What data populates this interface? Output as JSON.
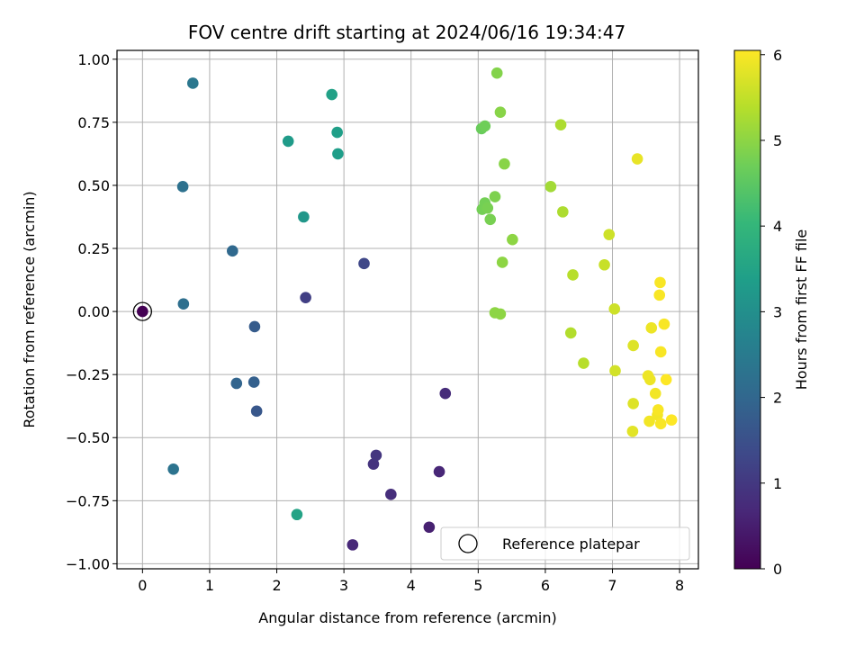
{
  "chart_data": {
    "type": "scatter",
    "title": "FOV centre drift starting at 2024/06/16 19:34:47",
    "xlabel": "Angular distance from reference (arcmin)",
    "ylabel": "Rotation from reference (arcmin)",
    "xlim": [
      -0.38,
      8.28
    ],
    "ylim": [
      -1.02,
      1.035
    ],
    "xticks": [
      0,
      1,
      2,
      3,
      4,
      5,
      6,
      7,
      8
    ],
    "yticks": [
      -1.0,
      -0.75,
      -0.5,
      -0.25,
      0.0,
      0.25,
      0.5,
      0.75,
      1.0
    ],
    "xtick_labels": [
      "0",
      "1",
      "2",
      "3",
      "4",
      "5",
      "6",
      "7",
      "8"
    ],
    "ytick_labels": [
      "−1.00",
      "−0.75",
      "−0.50",
      "−0.25",
      "0.00",
      "0.25",
      "0.50",
      "0.75",
      "1.00"
    ],
    "grid": true,
    "colormap": "viridis",
    "colorbar": {
      "label": "Hours from first FF file",
      "range": [
        0,
        6.05
      ],
      "ticks": [
        0,
        1,
        2,
        3,
        4,
        5,
        6
      ],
      "tick_labels": [
        "0",
        "1",
        "2",
        "3",
        "4",
        "5",
        "6"
      ]
    },
    "legend": {
      "label": "Reference platepar",
      "placement": "lower right"
    },
    "reference_point": {
      "x": 0.0,
      "y": 0.0
    },
    "series": [
      {
        "points": [
          {
            "x": 0.0,
            "y": 0.0,
            "c": 0.0
          },
          {
            "x": 4.27,
            "y": -0.855,
            "c": 0.55
          },
          {
            "x": 3.13,
            "y": -0.925,
            "c": 0.7
          },
          {
            "x": 4.42,
            "y": -0.635,
            "c": 0.65
          },
          {
            "x": 3.7,
            "y": -0.725,
            "c": 0.8
          },
          {
            "x": 4.51,
            "y": -0.325,
            "c": 0.75
          },
          {
            "x": 3.44,
            "y": -0.605,
            "c": 0.9
          },
          {
            "x": 3.48,
            "y": -0.57,
            "c": 0.95
          },
          {
            "x": 2.43,
            "y": 0.055,
            "c": 1.15
          },
          {
            "x": 3.3,
            "y": 0.19,
            "c": 1.3
          },
          {
            "x": 1.7,
            "y": -0.395,
            "c": 1.65
          },
          {
            "x": 1.67,
            "y": -0.06,
            "c": 1.75
          },
          {
            "x": 1.66,
            "y": -0.28,
            "c": 1.85
          },
          {
            "x": 1.4,
            "y": -0.285,
            "c": 1.95
          },
          {
            "x": 1.34,
            "y": 0.24,
            "c": 2.05
          },
          {
            "x": 0.61,
            "y": 0.03,
            "c": 2.2
          },
          {
            "x": 0.6,
            "y": 0.495,
            "c": 2.25
          },
          {
            "x": 0.46,
            "y": -0.625,
            "c": 2.3
          },
          {
            "x": 0.75,
            "y": 0.905,
            "c": 2.4
          },
          {
            "x": 2.4,
            "y": 0.375,
            "c": 3.2
          },
          {
            "x": 2.17,
            "y": 0.675,
            "c": 3.3
          },
          {
            "x": 2.91,
            "y": 0.625,
            "c": 3.35
          },
          {
            "x": 2.9,
            "y": 0.71,
            "c": 3.4
          },
          {
            "x": 2.82,
            "y": 0.86,
            "c": 3.45
          },
          {
            "x": 2.3,
            "y": -0.805,
            "c": 3.5
          },
          {
            "x": 5.05,
            "y": 0.725,
            "c": 4.65
          },
          {
            "x": 5.1,
            "y": 0.735,
            "c": 4.7
          },
          {
            "x": 5.06,
            "y": 0.405,
            "c": 4.75
          },
          {
            "x": 5.1,
            "y": 0.43,
            "c": 4.75
          },
          {
            "x": 5.14,
            "y": 0.41,
            "c": 4.8
          },
          {
            "x": 5.18,
            "y": 0.365,
            "c": 4.8
          },
          {
            "x": 5.25,
            "y": 0.455,
            "c": 4.85
          },
          {
            "x": 5.28,
            "y": 0.945,
            "c": 4.9
          },
          {
            "x": 5.33,
            "y": 0.79,
            "c": 4.95
          },
          {
            "x": 5.39,
            "y": 0.585,
            "c": 4.95
          },
          {
            "x": 5.51,
            "y": 0.285,
            "c": 5.0
          },
          {
            "x": 5.36,
            "y": 0.195,
            "c": 5.0
          },
          {
            "x": 5.25,
            "y": -0.005,
            "c": 5.0
          },
          {
            "x": 5.33,
            "y": -0.01,
            "c": 5.0
          },
          {
            "x": 6.08,
            "y": 0.495,
            "c": 5.2
          },
          {
            "x": 6.23,
            "y": 0.74,
            "c": 5.3
          },
          {
            "x": 6.26,
            "y": 0.395,
            "c": 5.3
          },
          {
            "x": 6.38,
            "y": -0.085,
            "c": 5.35
          },
          {
            "x": 6.41,
            "y": 0.145,
            "c": 5.4
          },
          {
            "x": 6.57,
            "y": -0.205,
            "c": 5.4
          },
          {
            "x": 6.88,
            "y": 0.185,
            "c": 5.55
          },
          {
            "x": 6.95,
            "y": 0.305,
            "c": 5.6
          },
          {
            "x": 7.03,
            "y": 0.01,
            "c": 5.6
          },
          {
            "x": 7.04,
            "y": -0.235,
            "c": 5.65
          },
          {
            "x": 7.31,
            "y": -0.135,
            "c": 5.75
          },
          {
            "x": 7.31,
            "y": -0.365,
            "c": 5.75
          },
          {
            "x": 7.3,
            "y": -0.475,
            "c": 5.8
          },
          {
            "x": 7.37,
            "y": 0.605,
            "c": 5.85
          },
          {
            "x": 7.53,
            "y": -0.255,
            "c": 5.9
          },
          {
            "x": 7.56,
            "y": -0.27,
            "c": 5.9
          },
          {
            "x": 7.58,
            "y": -0.065,
            "c": 5.9
          },
          {
            "x": 7.55,
            "y": -0.435,
            "c": 5.95
          },
          {
            "x": 7.64,
            "y": -0.325,
            "c": 5.95
          },
          {
            "x": 7.67,
            "y": -0.41,
            "c": 5.95
          },
          {
            "x": 7.68,
            "y": -0.39,
            "c": 6.0
          },
          {
            "x": 7.7,
            "y": 0.065,
            "c": 6.0
          },
          {
            "x": 7.71,
            "y": 0.115,
            "c": 6.0
          },
          {
            "x": 7.72,
            "y": -0.16,
            "c": 6.0
          },
          {
            "x": 7.72,
            "y": -0.445,
            "c": 6.0
          },
          {
            "x": 7.77,
            "y": -0.05,
            "c": 6.0
          },
          {
            "x": 7.8,
            "y": -0.27,
            "c": 6.05
          },
          {
            "x": 7.88,
            "y": -0.43,
            "c": 6.05
          }
        ]
      }
    ]
  }
}
